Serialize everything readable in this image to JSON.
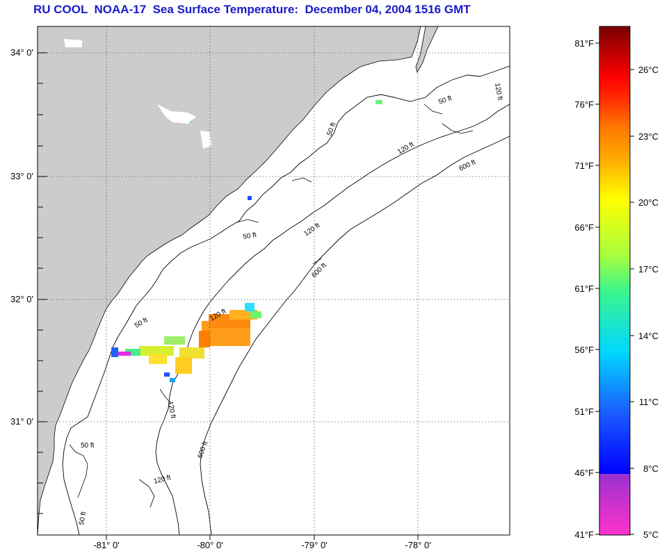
{
  "title": "RU COOL  NOAA-17  Sea Surface Temperature:  December 04, 2004 1516 GMT",
  "axes": {
    "lon_labels": [
      "-81° 0'",
      "-80° 0'",
      "-79° 0'",
      "-78° 0'"
    ],
    "lat_labels": [
      "34° 0'",
      "33° 0'",
      "32° 0'",
      "31° 0'"
    ]
  },
  "contour_labels": [
    {
      "text": "50 ft"
    },
    {
      "text": "50 ft"
    },
    {
      "text": "50 ft"
    },
    {
      "text": "50 ft"
    },
    {
      "text": "50 ft"
    },
    {
      "text": "50 ft"
    },
    {
      "text": "120 ft"
    },
    {
      "text": "120 ft"
    },
    {
      "text": "120 ft"
    },
    {
      "text": "120 ft"
    },
    {
      "text": "120 ft"
    },
    {
      "text": "120 ft"
    },
    {
      "text": "600 ft"
    },
    {
      "text": "600 ft"
    },
    {
      "text": "600 ft"
    }
  ],
  "colorbar": {
    "fahrenheit": [
      "81°F",
      "76°F",
      "71°F",
      "66°F",
      "61°F",
      "56°F",
      "51°F",
      "46°F",
      "41°F"
    ],
    "celsius": [
      "26°C",
      "23°C",
      "20°C",
      "17°C",
      "14°C",
      "11°C",
      "8°C",
      "5°C"
    ],
    "colors": [
      "#ff33cc",
      "#7a22d8",
      "#0000ff",
      "#1a6cff",
      "#00e6ff",
      "#33ff99",
      "#b8ff33",
      "#ffff00",
      "#ff9900",
      "#ff3300",
      "#ff0000",
      "#aa0000",
      "#7a0000"
    ]
  },
  "land_color": "#cccccc"
}
